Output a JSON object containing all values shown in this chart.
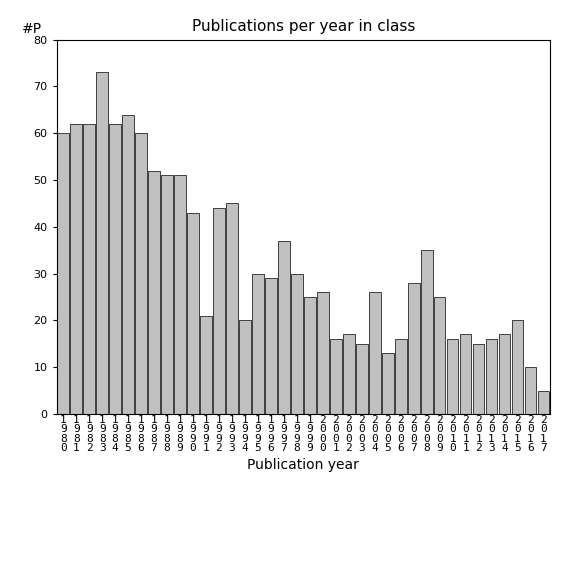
{
  "title": "Publications per year in class",
  "xlabel": "Publication year",
  "ylabel": "#P",
  "years": [
    1980,
    1981,
    1982,
    1983,
    1984,
    1985,
    1986,
    1987,
    1988,
    1989,
    1990,
    1991,
    1992,
    1993,
    1994,
    1995,
    1996,
    1997,
    1998,
    1999,
    2000,
    2001,
    2002,
    2003,
    2004,
    2005,
    2006,
    2007,
    2008,
    2009,
    2010,
    2011,
    2012,
    2013,
    2014,
    2015,
    2016,
    2017
  ],
  "values": [
    60,
    62,
    62,
    73,
    62,
    64,
    60,
    52,
    51,
    51,
    43,
    21,
    44,
    45,
    20,
    30,
    29,
    37,
    30,
    25,
    26,
    16,
    17,
    15,
    26,
    13,
    16,
    28,
    35,
    25,
    16,
    17,
    15,
    16,
    17,
    20,
    10,
    5
  ],
  "bar_color": "#c0c0c0",
  "bar_edgecolor": "#000000",
  "ylim": [
    0,
    80
  ],
  "yticks": [
    0,
    10,
    20,
    30,
    40,
    50,
    60,
    70,
    80
  ],
  "background_color": "#ffffff",
  "title_fontsize": 11,
  "axis_label_fontsize": 10,
  "tick_fontsize": 8
}
